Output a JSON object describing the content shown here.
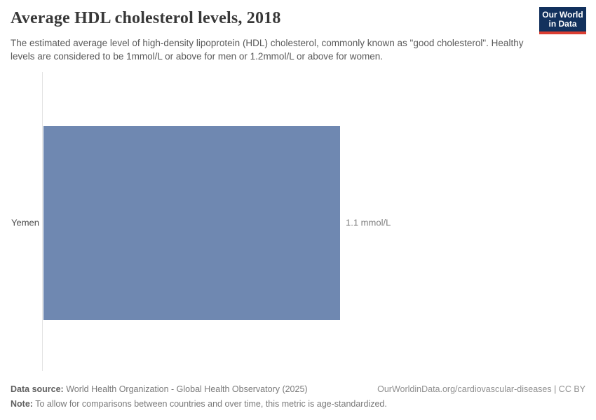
{
  "header": {
    "title": "Average HDL cholesterol levels, 2018",
    "subtitle": "The estimated average level of high-density lipoprotein (HDL) cholesterol, commonly known as \"good cholesterol\". Healthy levels are considered to be 1mmol/L or above for men or 1.2mmol/L or above for women.",
    "logo": {
      "line1": "Our World",
      "line2": "in Data",
      "background_color": "#12315d",
      "accent_color": "#dc3e32"
    }
  },
  "chart_data": {
    "type": "bar",
    "orientation": "horizontal",
    "title": "Average HDL cholesterol levels, 2018",
    "categories": [
      "Yemen"
    ],
    "values": [
      1.1
    ],
    "value_labels": [
      "1.1 mmol/L"
    ],
    "unit": "mmol/L",
    "xlabel": "",
    "ylabel": "",
    "xlim": [
      0,
      1.1
    ],
    "grid": false,
    "legend": false,
    "bar_color": "#6f88b1"
  },
  "footer": {
    "datasource_label": "Data source:",
    "datasource_value": " World Health Organization - Global Health Observatory (2025)",
    "citation": "OurWorldinData.org/cardiovascular-diseases | CC BY",
    "note_label": "Note:",
    "note_value": " To allow for comparisons between countries and over time, this metric is age-standardized."
  }
}
